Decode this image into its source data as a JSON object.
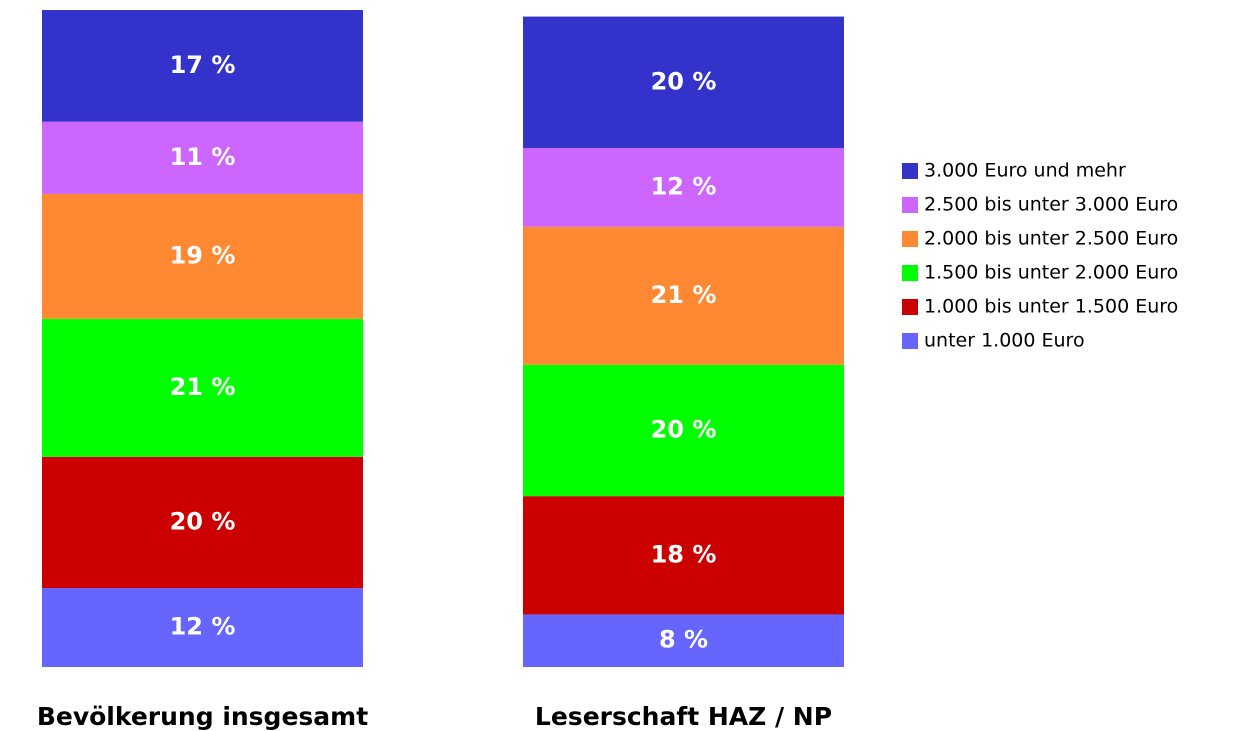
{
  "chart_data": {
    "type": "stacked_bar",
    "categories": [
      "Bevölkerung insgesamt",
      "Leserschaft HAZ / NP"
    ],
    "ylim": [
      0,
      100
    ],
    "series": [
      {
        "name": "unter 1.000 Euro",
        "color": "#6666ff",
        "values": [
          12,
          8
        ],
        "value_labels": [
          "12 %",
          "8 %"
        ]
      },
      {
        "name": "1.000 bis unter 1.500 Euro",
        "color": "#cc0000",
        "values": [
          20,
          18
        ],
        "value_labels": [
          "20 %",
          "18 %"
        ]
      },
      {
        "name": "1.500 bis unter 2.000 Euro",
        "color": "#00ff00",
        "values": [
          21,
          20
        ],
        "value_labels": [
          "21 %",
          "20 %"
        ]
      },
      {
        "name": "2.000 bis unter 2.500 Euro",
        "color": "#ff8833",
        "values": [
          19,
          21
        ],
        "value_labels": [
          "19 %",
          "21 %"
        ]
      },
      {
        "name": "2.500 bis unter 3.000 Euro",
        "color": "#cc66ff",
        "values": [
          11,
          12
        ],
        "value_labels": [
          "11 %",
          "12 %"
        ]
      },
      {
        "name": "3.000 Euro und mehr",
        "color": "#3333cc",
        "values": [
          17,
          20
        ],
        "value_labels": [
          "17 %",
          "20 %"
        ]
      }
    ]
  }
}
